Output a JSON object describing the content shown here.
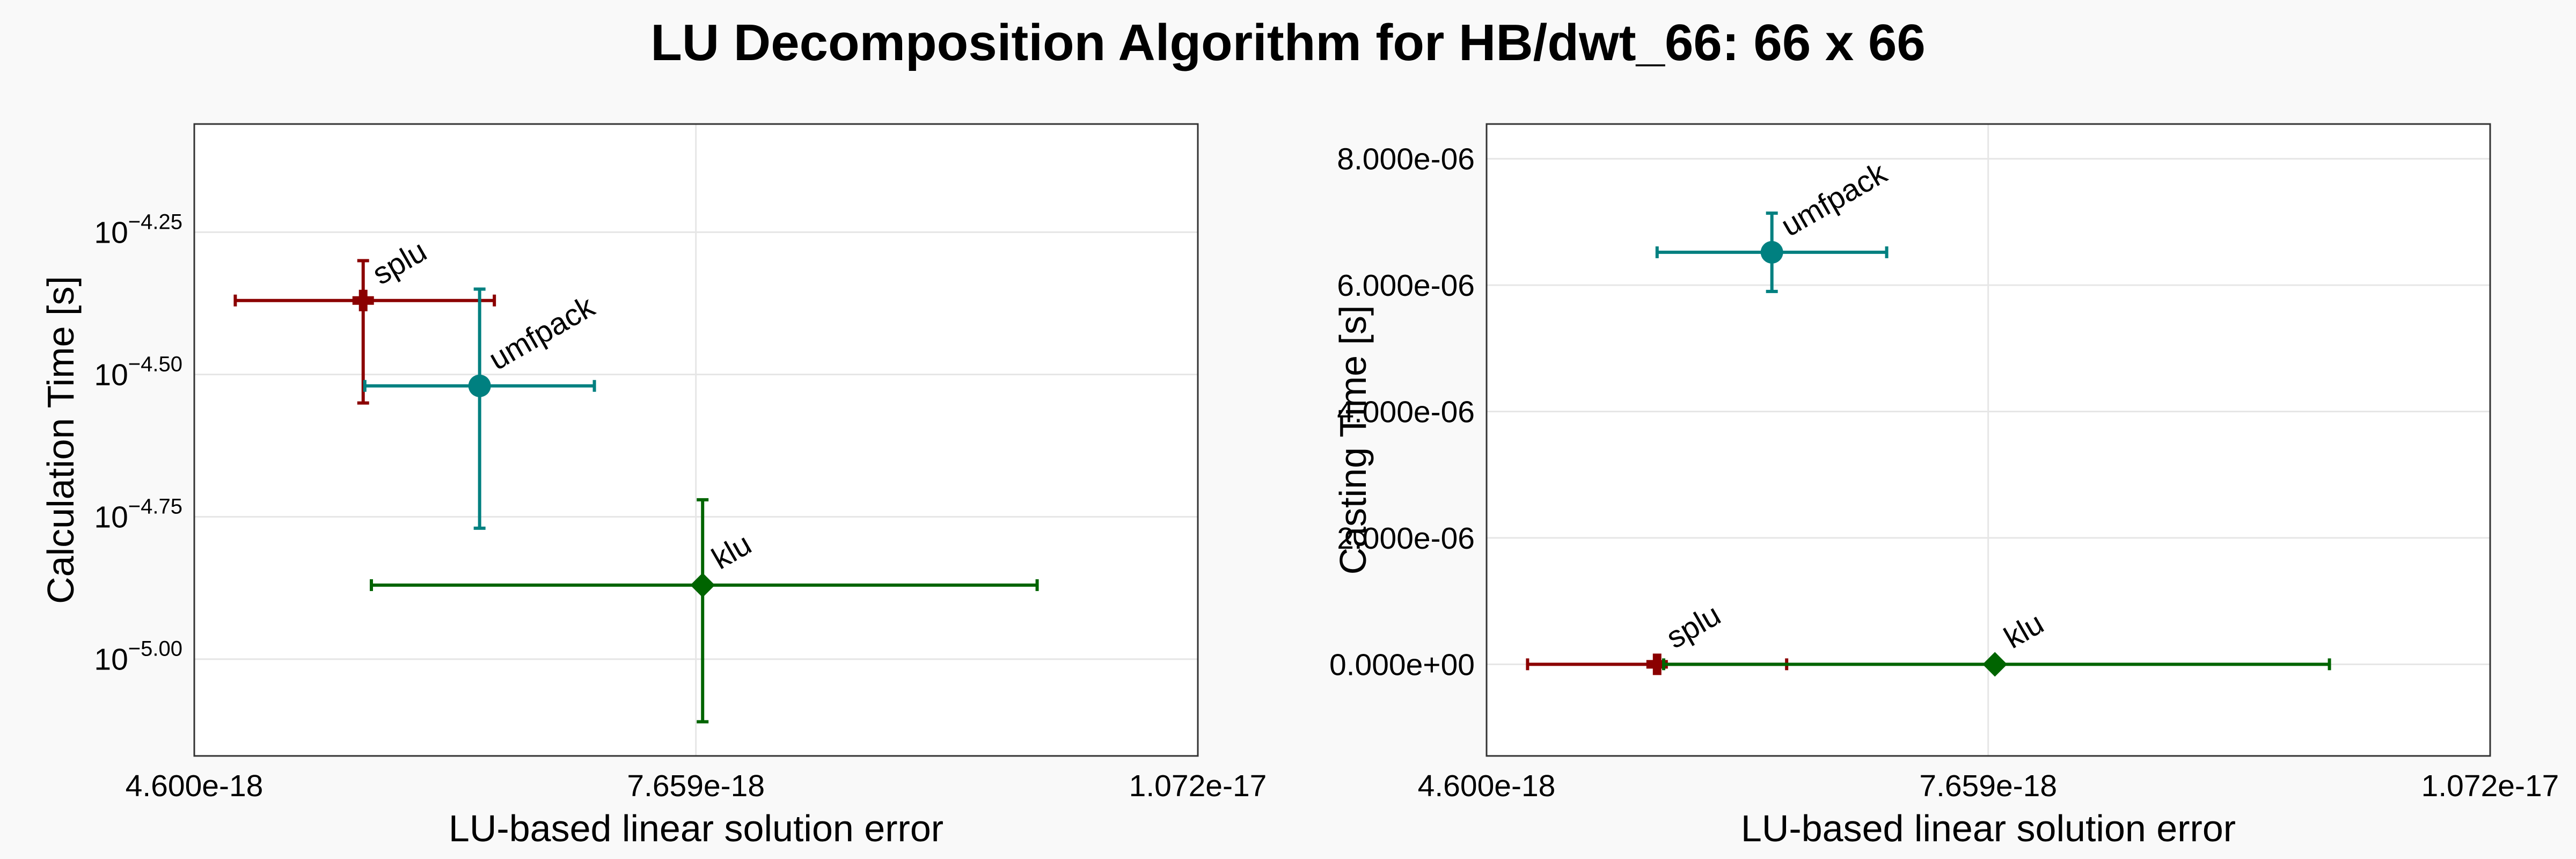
{
  "figure": {
    "title": "LU Decomposition Algorithm for HB/dwt_66: 66 x 66"
  },
  "chart_data": [
    {
      "type": "scatter",
      "xlabel": "LU-based linear solution error",
      "ylabel": "Calculation Time [s]",
      "yscale": "log10",
      "xlim": [
        4.6e-18,
        1.072e-17
      ],
      "ylim_log10": [
        -5.17,
        -4.06
      ],
      "x_ticks": [
        {
          "value": 4.6e-18,
          "label": "4.600e-18"
        },
        {
          "value": 7.659e-18,
          "label": "7.659e-18"
        },
        {
          "value": 1.072e-17,
          "label": "1.072e-17"
        }
      ],
      "y_ticks": [
        {
          "exp": -4.25,
          "base": "10",
          "sup": "−4.25"
        },
        {
          "exp": -4.5,
          "base": "10",
          "sup": "−4.50"
        },
        {
          "exp": -4.75,
          "base": "10",
          "sup": "−4.75"
        },
        {
          "exp": -5.0,
          "base": "10",
          "sup": "−5.00"
        }
      ],
      "grid": true,
      "series": [
        {
          "label": "splu",
          "color": "#8b0000",
          "marker": "cross",
          "x": 5.63e-18,
          "xerr": [
            4.85e-18,
            6.43e-18
          ],
          "ylog": -4.37,
          "yerr_log": [
            -4.55,
            -4.3
          ]
        },
        {
          "label": "umfpack",
          "color": "#008080",
          "marker": "circle",
          "x": 6.34e-18,
          "xerr": [
            5.64e-18,
            7.04e-18
          ],
          "ylog": -4.52,
          "yerr_log": [
            -4.77,
            -4.35
          ]
        },
        {
          "label": "klu",
          "color": "#006400",
          "marker": "diamond",
          "x": 7.7e-18,
          "xerr": [
            5.68e-18,
            9.74e-18
          ],
          "ylog": -4.87,
          "yerr_log": [
            -5.11,
            -4.72
          ]
        }
      ]
    },
    {
      "type": "scatter",
      "xlabel": "LU-based linear solution error",
      "ylabel": "Casting Time [s]",
      "yscale": "linear",
      "xlim": [
        4.6e-18,
        1.072e-17
      ],
      "ylim": [
        -1.45e-06,
        8.55e-06
      ],
      "x_ticks": [
        {
          "value": 4.6e-18,
          "label": "4.600e-18"
        },
        {
          "value": 7.659e-18,
          "label": "7.659e-18"
        },
        {
          "value": 1.072e-17,
          "label": "1.072e-17"
        }
      ],
      "y_ticks": [
        {
          "value": 0.0,
          "label": "0.000e+00"
        },
        {
          "value": 2e-06,
          "label": "2.000e-06"
        },
        {
          "value": 4e-06,
          "label": "4.000e-06"
        },
        {
          "value": 6e-06,
          "label": "6.000e-06"
        },
        {
          "value": 8e-06,
          "label": "8.000e-06"
        }
      ],
      "grid": true,
      "series": [
        {
          "label": "splu",
          "color": "#8b0000",
          "marker": "cross",
          "x": 5.64e-18,
          "xerr": [
            4.85e-18,
            6.43e-18
          ],
          "y": 0.0,
          "yerr": [
            0.0,
            0.0
          ]
        },
        {
          "label": "umfpack",
          "color": "#008080",
          "marker": "circle",
          "x": 6.34e-18,
          "xerr": [
            5.64e-18,
            7.04e-18
          ],
          "y": 6.52e-06,
          "yerr": [
            5.9e-06,
            7.14e-06
          ]
        },
        {
          "label": "klu",
          "color": "#006400",
          "marker": "diamond",
          "x": 7.7e-18,
          "xerr": [
            5.68e-18,
            9.74e-18
          ],
          "y": 0.0,
          "yerr": [
            0.0,
            0.0
          ]
        }
      ]
    }
  ]
}
